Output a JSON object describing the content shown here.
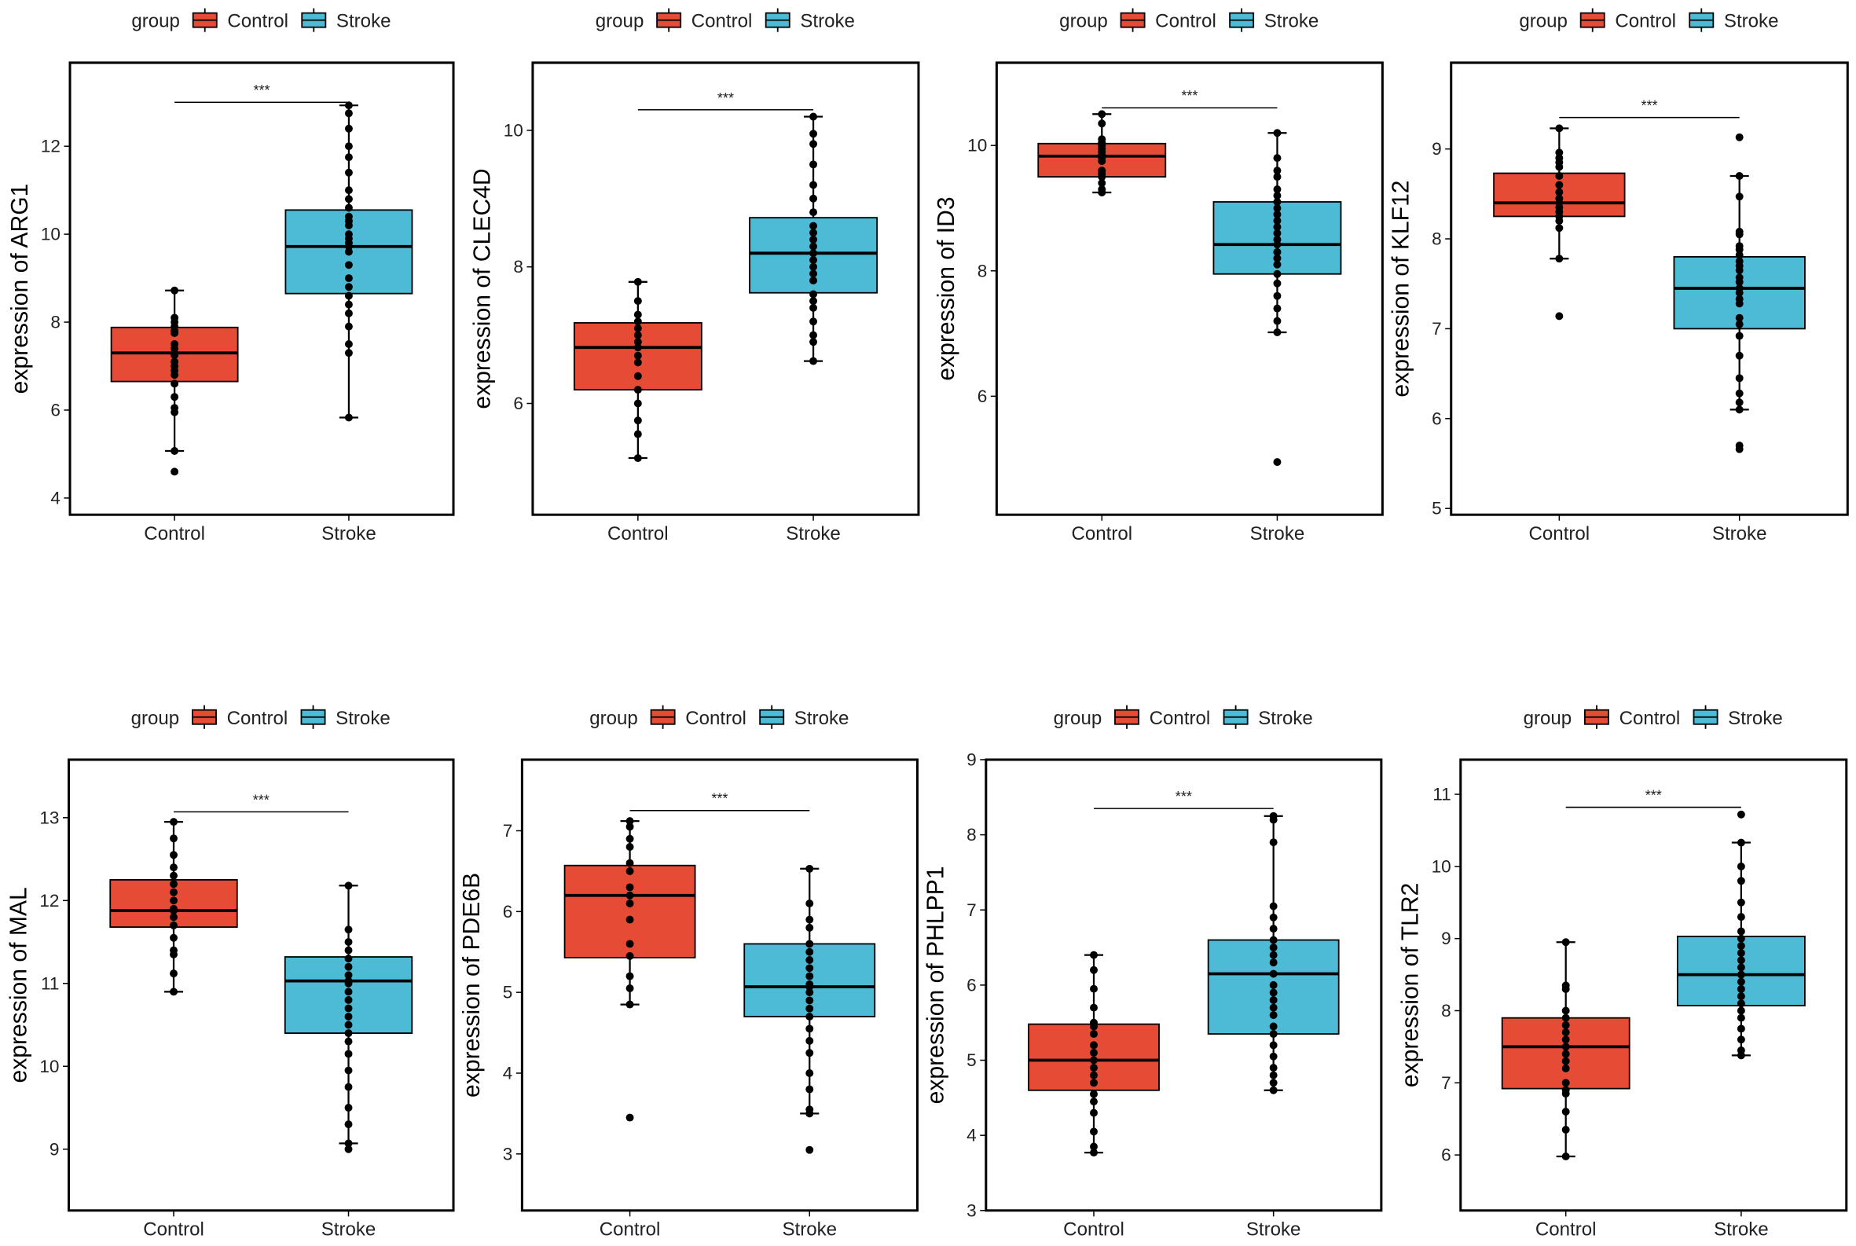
{
  "colors": {
    "Control": "#E64B35",
    "Stroke": "#4DBBD5"
  },
  "legend": {
    "title": "group",
    "entries": [
      "Control",
      "Stroke"
    ]
  },
  "chart_data": [
    {
      "type": "box",
      "ylabel": "expression of ARG1",
      "categories": [
        "Control",
        "Stroke"
      ],
      "ylim": [
        3.62,
        13.9
      ],
      "yticks": [
        4,
        6,
        8,
        10,
        12
      ],
      "significance": "***",
      "sig_y": 13.0,
      "groups": [
        {
          "name": "Control",
          "box": {
            "lower_whisker": 5.07,
            "q1": 6.65,
            "median": 7.3,
            "q3": 7.88,
            "upper_whisker": 8.72
          },
          "points": [
            8.72,
            8.1,
            8.0,
            7.9,
            7.8,
            7.75,
            7.5,
            7.4,
            7.3,
            7.25,
            7.1,
            7.0,
            6.9,
            6.8,
            6.6,
            6.3,
            6.05,
            5.95,
            5.07,
            4.6
          ]
        },
        {
          "name": "Stroke",
          "box": {
            "lower_whisker": 5.83,
            "q1": 8.65,
            "median": 9.72,
            "q3": 10.55,
            "upper_whisker": 12.93
          },
          "points": [
            12.93,
            12.75,
            12.4,
            12.0,
            11.75,
            11.4,
            11.0,
            10.8,
            10.6,
            10.4,
            10.3,
            10.2,
            10.0,
            9.9,
            9.8,
            9.72,
            9.6,
            9.3,
            9.0,
            8.8,
            8.6,
            8.4,
            8.2,
            7.9,
            7.5,
            7.3,
            5.83
          ]
        }
      ]
    },
    {
      "type": "box",
      "ylabel": "expression of CLEC4D",
      "categories": [
        "Control",
        "Stroke"
      ],
      "ylim": [
        4.37,
        10.99
      ],
      "yticks": [
        6,
        8,
        10
      ],
      "significance": "***",
      "sig_y": 10.3,
      "groups": [
        {
          "name": "Control",
          "box": {
            "lower_whisker": 5.2,
            "q1": 6.2,
            "median": 6.82,
            "q3": 7.18,
            "upper_whisker": 7.78
          },
          "points": [
            7.78,
            7.5,
            7.3,
            7.2,
            7.1,
            7.0,
            6.9,
            6.82,
            6.7,
            6.6,
            6.4,
            6.2,
            6.0,
            5.75,
            5.55,
            5.2
          ]
        },
        {
          "name": "Stroke",
          "box": {
            "lower_whisker": 6.62,
            "q1": 7.62,
            "median": 8.2,
            "q3": 8.72,
            "upper_whisker": 10.2
          },
          "points": [
            10.2,
            9.95,
            9.8,
            9.5,
            9.2,
            9.0,
            8.8,
            8.6,
            8.5,
            8.4,
            8.3,
            8.2,
            8.1,
            8.0,
            7.9,
            7.8,
            7.6,
            7.5,
            7.4,
            7.2,
            7.0,
            6.9,
            6.62
          ]
        }
      ]
    },
    {
      "type": "box",
      "ylabel": "expression of ID3",
      "categories": [
        "Control",
        "Stroke"
      ],
      "ylim": [
        4.11,
        11.32
      ],
      "yticks": [
        6,
        8,
        10
      ],
      "significance": "***",
      "sig_y": 10.6,
      "groups": [
        {
          "name": "Control",
          "box": {
            "lower_whisker": 9.25,
            "q1": 9.5,
            "median": 9.83,
            "q3": 10.03,
            "upper_whisker": 10.5
          },
          "points": [
            10.5,
            10.35,
            10.1,
            10.05,
            10.0,
            9.95,
            9.9,
            9.85,
            9.8,
            9.75,
            9.6,
            9.55,
            9.5,
            9.4,
            9.3,
            9.25
          ]
        },
        {
          "name": "Stroke",
          "box": {
            "lower_whisker": 7.02,
            "q1": 7.95,
            "median": 8.42,
            "q3": 9.1,
            "upper_whisker": 10.2
          },
          "points": [
            10.2,
            9.8,
            9.6,
            9.5,
            9.3,
            9.2,
            9.1,
            9.0,
            8.9,
            8.8,
            8.7,
            8.6,
            8.5,
            8.42,
            8.3,
            8.2,
            8.1,
            7.95,
            7.8,
            7.6,
            7.4,
            7.2,
            7.02,
            4.95
          ]
        }
      ]
    },
    {
      "type": "box",
      "ylabel": "expression of KLF12",
      "categories": [
        "Control",
        "Stroke"
      ],
      "ylim": [
        4.93,
        9.96
      ],
      "yticks": [
        5,
        6,
        7,
        8,
        9
      ],
      "significance": "***",
      "sig_y": 9.35,
      "groups": [
        {
          "name": "Control",
          "box": {
            "lower_whisker": 7.78,
            "q1": 8.25,
            "median": 8.4,
            "q3": 8.73,
            "upper_whisker": 9.23
          },
          "points": [
            9.23,
            8.96,
            8.9,
            8.85,
            8.8,
            8.7,
            8.6,
            8.52,
            8.45,
            8.4,
            8.35,
            8.3,
            8.25,
            8.2,
            8.12,
            7.78,
            7.14
          ]
        },
        {
          "name": "Stroke",
          "box": {
            "lower_whisker": 6.1,
            "q1": 7.0,
            "median": 7.45,
            "q3": 7.8,
            "upper_whisker": 8.7
          },
          "points": [
            9.13,
            8.7,
            8.47,
            8.08,
            8.05,
            7.92,
            7.88,
            7.82,
            7.75,
            7.7,
            7.65,
            7.57,
            7.52,
            7.45,
            7.4,
            7.33,
            7.28,
            7.12,
            7.05,
            6.92,
            6.7,
            6.45,
            6.28,
            6.18,
            6.1,
            5.7,
            5.66
          ]
        }
      ]
    },
    {
      "type": "box",
      "ylabel": "expression of MAL",
      "categories": [
        "Control",
        "Stroke"
      ],
      "ylim": [
        8.26,
        13.7
      ],
      "yticks": [
        9,
        10,
        11,
        12,
        13
      ],
      "significance": "***",
      "sig_y": 13.07,
      "groups": [
        {
          "name": "Control",
          "box": {
            "lower_whisker": 10.9,
            "q1": 11.68,
            "median": 11.88,
            "q3": 12.25,
            "upper_whisker": 12.95
          },
          "points": [
            12.95,
            12.75,
            12.55,
            12.4,
            12.3,
            12.2,
            12.1,
            12.0,
            11.9,
            11.88,
            11.8,
            11.7,
            11.55,
            11.4,
            11.35,
            11.12,
            10.9
          ]
        },
        {
          "name": "Stroke",
          "box": {
            "lower_whisker": 9.07,
            "q1": 10.4,
            "median": 11.03,
            "q3": 11.32,
            "upper_whisker": 12.18
          },
          "points": [
            12.18,
            11.65,
            11.5,
            11.4,
            11.3,
            11.2,
            11.1,
            11.03,
            11.0,
            10.9,
            10.8,
            10.7,
            10.6,
            10.5,
            10.4,
            10.3,
            10.15,
            9.95,
            9.75,
            9.5,
            9.3,
            9.07,
            9.0
          ]
        }
      ]
    },
    {
      "type": "box",
      "ylabel": "expression of PDE6B",
      "categories": [
        "Control",
        "Stroke"
      ],
      "ylim": [
        2.3,
        7.88
      ],
      "yticks": [
        3,
        4,
        5,
        6,
        7
      ],
      "significance": "***",
      "sig_y": 7.25,
      "groups": [
        {
          "name": "Control",
          "box": {
            "lower_whisker": 4.85,
            "q1": 5.43,
            "median": 6.2,
            "q3": 6.57,
            "upper_whisker": 7.12
          },
          "points": [
            7.12,
            7.05,
            6.9,
            6.8,
            6.6,
            6.5,
            6.3,
            6.2,
            6.1,
            5.9,
            5.6,
            5.45,
            5.2,
            5.05,
            4.85,
            3.45
          ]
        },
        {
          "name": "Stroke",
          "box": {
            "lower_whisker": 3.5,
            "q1": 4.7,
            "median": 5.07,
            "q3": 5.6,
            "upper_whisker": 6.53
          },
          "points": [
            6.53,
            6.1,
            5.9,
            5.8,
            5.6,
            5.5,
            5.4,
            5.3,
            5.2,
            5.1,
            5.07,
            5.0,
            4.9,
            4.8,
            4.7,
            4.55,
            4.4,
            4.25,
            4.0,
            3.8,
            3.55,
            3.5,
            3.05
          ]
        }
      ]
    },
    {
      "type": "box",
      "ylabel": "expression of PHLPP1",
      "categories": [
        "Control",
        "Stroke"
      ],
      "ylim": [
        3,
        9
      ],
      "yticks": [
        3,
        4,
        5,
        6,
        7,
        8,
        9
      ],
      "significance": "***",
      "sig_y": 8.35,
      "groups": [
        {
          "name": "Control",
          "box": {
            "lower_whisker": 3.77,
            "q1": 4.6,
            "median": 5.0,
            "q3": 5.48,
            "upper_whisker": 6.4
          },
          "points": [
            6.4,
            6.2,
            5.95,
            5.7,
            5.5,
            5.45,
            5.35,
            5.2,
            5.1,
            5.0,
            4.9,
            4.8,
            4.7,
            4.55,
            4.45,
            4.3,
            4.05,
            3.85,
            3.77
          ]
        },
        {
          "name": "Stroke",
          "box": {
            "lower_whisker": 4.6,
            "q1": 5.35,
            "median": 6.15,
            "q3": 6.6,
            "upper_whisker": 8.25
          },
          "points": [
            8.25,
            8.2,
            7.9,
            7.05,
            6.9,
            6.75,
            6.6,
            6.5,
            6.4,
            6.3,
            6.15,
            6.0,
            5.9,
            5.8,
            5.7,
            5.6,
            5.45,
            5.35,
            5.2,
            5.05,
            4.9,
            4.8,
            4.7,
            4.6
          ]
        }
      ]
    },
    {
      "type": "box",
      "ylabel": "expression of TLR2",
      "categories": [
        "Control",
        "Stroke"
      ],
      "ylim": [
        5.23,
        11.48
      ],
      "yticks": [
        6,
        7,
        8,
        9,
        10,
        11
      ],
      "significance": "***",
      "sig_y": 10.82,
      "groups": [
        {
          "name": "Control",
          "box": {
            "lower_whisker": 5.98,
            "q1": 6.92,
            "median": 7.5,
            "q3": 7.9,
            "upper_whisker": 8.95
          },
          "points": [
            8.95,
            8.35,
            8.3,
            8.0,
            7.9,
            7.8,
            7.7,
            7.6,
            7.5,
            7.4,
            7.3,
            7.2,
            7.0,
            6.9,
            6.85,
            6.6,
            6.35,
            5.98
          ]
        },
        {
          "name": "Stroke",
          "box": {
            "lower_whisker": 7.38,
            "q1": 8.07,
            "median": 8.5,
            "q3": 9.03,
            "upper_whisker": 10.33
          },
          "points": [
            10.72,
            10.33,
            10.0,
            9.8,
            9.5,
            9.3,
            9.1,
            9.0,
            8.9,
            8.8,
            8.7,
            8.6,
            8.5,
            8.4,
            8.3,
            8.2,
            8.1,
            8.0,
            7.9,
            7.75,
            7.6,
            7.45,
            7.38
          ]
        }
      ]
    }
  ]
}
